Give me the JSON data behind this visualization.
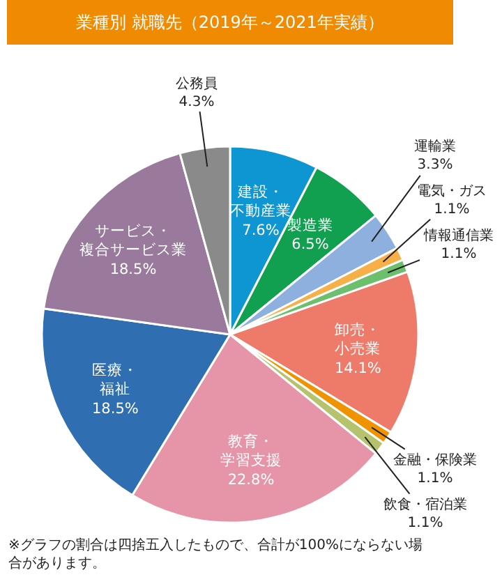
{
  "chart_data": {
    "type": "pie",
    "title": "業種別 就職先（2019年～2021年実績）",
    "categories": [
      "建設・不動産業",
      "製造業",
      "運輸業",
      "電気・ガス",
      "情報通信業",
      "卸売・小売業",
      "金融・保険業",
      "飲食・宿泊業",
      "教育・学習支援",
      "医療・福祉",
      "サービス・複合サービス業",
      "公務員"
    ],
    "values": [
      7.6,
      6.5,
      3.3,
      1.1,
      1.1,
      14.1,
      1.1,
      1.1,
      22.8,
      18.5,
      18.5,
      4.3
    ],
    "colors": [
      "#0e96d2",
      "#10a050",
      "#8eb0de",
      "#f7b048",
      "#6cbf6c",
      "#ee7b6a",
      "#ef9400",
      "#b5c36e",
      "#e695a8",
      "#2f6fb1",
      "#9a7a9c",
      "#8a8a8a"
    ],
    "value_labels": [
      "7.6%",
      "6.5%",
      "3.3%",
      "1.1%",
      "1.1%",
      "14.1%",
      "1.1%",
      "1.1%",
      "22.8%",
      "18.5%",
      "18.5%",
      "4.3%"
    ],
    "annotations": [
      "※グラフの割合は四捨五入したもので、合計が100%にならない場合があります。"
    ]
  }
}
